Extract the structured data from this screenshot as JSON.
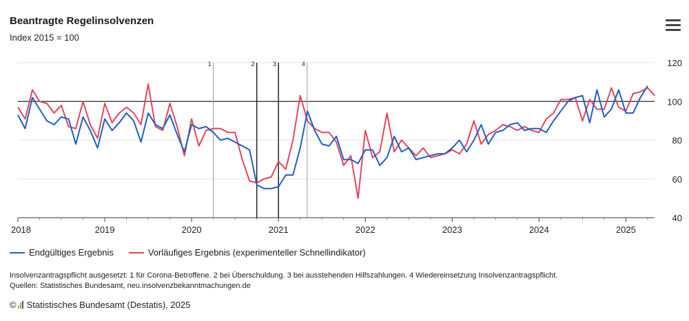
{
  "title": "Beantragte Regelinsolvenzen",
  "subtitle": "Index 2015 = 100",
  "menu_icon": "hamburger-menu-icon",
  "legend": [
    {
      "label": "Endgültiges Ergebnis",
      "color": "#1f5fbf"
    },
    {
      "label": "Vorläufiges Ergebnis (experimenteller Schnellindikator)",
      "color": "#e0455e"
    }
  ],
  "note_line1": "Insolvenzantragspflicht ausgesetzt: 1 für Corona-Betroffene. 2 bei Überschuldung. 3 bei ausstehenden Hilfszahlungen. 4 Wiedereinsetzung Insolvenzantragspflicht.",
  "note_line2": "Quellen: Statistisches Bundesamt, neu.insolvenzbekanntmachungen.de",
  "copyright_symbol": "©",
  "credit": "Statistisches Bundesamt (Destatis), 2025",
  "chart_data": {
    "type": "line",
    "title": "Beantragte Regelinsolvenzen",
    "subtitle": "Index 2015 = 100",
    "ylim": [
      40,
      120
    ],
    "yticks": [
      40,
      60,
      80,
      100,
      120
    ],
    "xlim": [
      2018.0,
      2025.33
    ],
    "xticks": [
      "2018",
      "2019",
      "2020",
      "2021",
      "2022",
      "2023",
      "2024",
      "2025"
    ],
    "reference_line": 100,
    "grid": true,
    "legend_position": "bottom",
    "markers": [
      {
        "label": "1",
        "x": 2020.25,
        "style": "thin"
      },
      {
        "label": "2",
        "x": 2020.75,
        "style": "bold"
      },
      {
        "label": "3",
        "x": 2021.0,
        "style": "bold"
      },
      {
        "label": "4",
        "x": 2021.33,
        "style": "thin"
      }
    ],
    "x_start": "2018-01",
    "series": [
      {
        "name": "Endgültiges Ergebnis",
        "color": "#1f5fbf",
        "values": [
          93,
          86,
          102,
          96,
          90,
          88,
          92,
          91,
          78,
          92,
          85,
          76,
          91,
          85,
          89,
          94,
          90,
          79,
          94,
          88,
          86,
          93,
          83,
          74,
          88,
          86,
          87,
          84,
          80,
          81,
          79,
          77,
          75,
          57,
          55,
          55,
          56,
          62,
          62,
          76,
          95,
          85,
          78,
          77,
          82,
          70,
          70,
          68,
          75,
          75,
          67,
          71,
          82,
          74,
          76,
          70,
          71,
          72,
          73,
          73,
          76,
          80,
          74,
          80,
          88,
          78,
          84,
          85,
          88,
          89,
          85,
          86,
          86,
          84,
          90,
          95,
          100,
          102,
          103,
          89,
          106,
          92,
          96,
          106,
          94,
          94,
          102,
          108
        ]
      },
      {
        "name": "Vorläufiges Ergebnis (experimenteller Schnellindikator)",
        "color": "#e0455e",
        "values": [
          97,
          91,
          106,
          100,
          99,
          94,
          98,
          87,
          86,
          100,
          88,
          81,
          99,
          89,
          94,
          97,
          94,
          88,
          109,
          87,
          85,
          99,
          87,
          72,
          91,
          77,
          85,
          86,
          86,
          84,
          84,
          70,
          59,
          58,
          60,
          61,
          69,
          65,
          80,
          103,
          90,
          86,
          84,
          84,
          79,
          67,
          72,
          50,
          85,
          71,
          74,
          94,
          74,
          80,
          76,
          72,
          76,
          71,
          72,
          73,
          75,
          73,
          78,
          90,
          78,
          83,
          85,
          88,
          87,
          85,
          87,
          85,
          84,
          91,
          94,
          101,
          101,
          102,
          90,
          101,
          96,
          96,
          107,
          97,
          95,
          104,
          105,
          107,
          103
        ]
      }
    ]
  }
}
